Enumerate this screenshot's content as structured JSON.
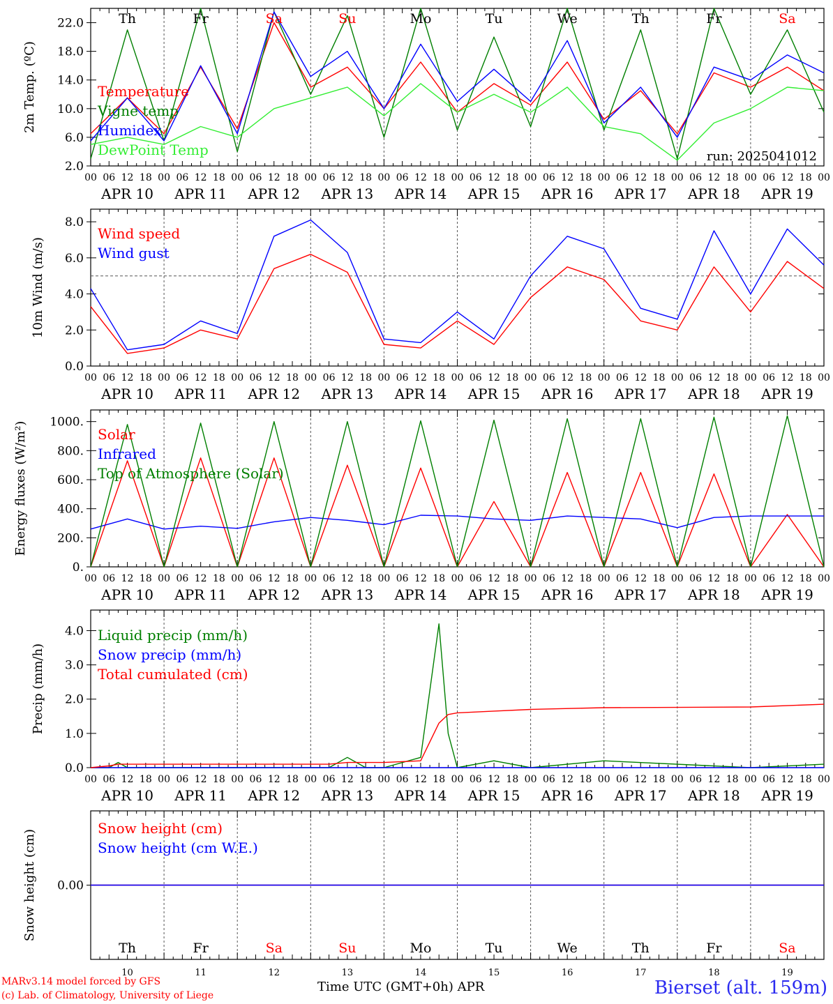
{
  "colors": {
    "red": "#ff0000",
    "green": "#007f00",
    "blue": "#0000ff",
    "lightgreen": "#33ee33",
    "grid": "#555555",
    "station": "#2a2af0"
  },
  "shared_axis": {
    "days": [
      {
        "wd": "Th",
        "weekend": false,
        "date": "APR 10",
        "dnum": "10"
      },
      {
        "wd": "Fr",
        "weekend": false,
        "date": "APR 11",
        "dnum": "11"
      },
      {
        "wd": "Sa",
        "weekend": true,
        "date": "APR 12",
        "dnum": "12"
      },
      {
        "wd": "Su",
        "weekend": true,
        "date": "APR 13",
        "dnum": "13"
      },
      {
        "wd": "Mo",
        "weekend": false,
        "date": "APR 14",
        "dnum": "14"
      },
      {
        "wd": "Tu",
        "weekend": false,
        "date": "APR 15",
        "dnum": "15"
      },
      {
        "wd": "We",
        "weekend": false,
        "date": "APR 16",
        "dnum": "16"
      },
      {
        "wd": "Th",
        "weekend": false,
        "date": "APR 17",
        "dnum": "17"
      },
      {
        "wd": "Fr",
        "weekend": false,
        "date": "APR 18",
        "dnum": "18"
      },
      {
        "wd": "Sa",
        "weekend": true,
        "date": "APR 19",
        "dnum": "19"
      }
    ],
    "hour_ticks": [
      "00",
      "06",
      "12",
      "18"
    ],
    "final_tick": "00"
  },
  "chart_data": [
    {
      "type": "line",
      "ylabel": "2m Temp. (ºC)",
      "ylim": [
        2,
        24
      ],
      "yticks": [
        "2.0",
        "6.0",
        "10.0",
        "14.0",
        "18.0",
        "22.0"
      ],
      "ytick_values": [
        2,
        6,
        10,
        14,
        18,
        22
      ],
      "annotation": "run: 2025041012",
      "x_hours": [
        0,
        12,
        24,
        36,
        48,
        60,
        72,
        84,
        96,
        108,
        120,
        132,
        144,
        156,
        168,
        180,
        192,
        204,
        216,
        228,
        240
      ],
      "series": [
        {
          "name": "Temperature",
          "color": "red",
          "values": [
            6.5,
            11.5,
            6.5,
            15.8,
            7.2,
            22.0,
            13.0,
            15.8,
            10.0,
            16.5,
            9.5,
            13.5,
            10.5,
            16.5,
            8.5,
            12.5,
            6.5,
            15.0,
            13.0,
            15.8,
            12.5
          ]
        },
        {
          "name": "Vigne temp",
          "color": "green",
          "values": [
            3.0,
            21.0,
            5.5,
            24.0,
            4.0,
            23.5,
            12.0,
            23.0,
            6.0,
            24.0,
            7.0,
            20.0,
            7.5,
            24.0,
            7.0,
            21.0,
            3.0,
            24.0,
            12.0,
            21.0,
            9.5
          ]
        },
        {
          "name": "Humidex",
          "color": "blue",
          "values": [
            5.5,
            11.5,
            5.5,
            16.0,
            6.5,
            23.5,
            14.5,
            18.0,
            10.0,
            19.0,
            11.0,
            15.5,
            11.0,
            19.5,
            8.0,
            13.0,
            6.0,
            15.8,
            14.0,
            17.5,
            15.0
          ]
        },
        {
          "name": "DewPoint Temp",
          "color": "lightgreen",
          "values": [
            5.0,
            6.0,
            5.0,
            7.5,
            6.0,
            10.0,
            11.5,
            13.0,
            9.0,
            13.5,
            9.5,
            12.0,
            9.5,
            13.0,
            7.5,
            6.5,
            2.8,
            8.0,
            10.0,
            13.0,
            12.5
          ]
        }
      ]
    },
    {
      "type": "line",
      "ylabel": "10m Wind (m/s)",
      "ylim": [
        0,
        8.7
      ],
      "yticks": [
        "0.0",
        "2.0",
        "4.0",
        "6.0",
        "8.0"
      ],
      "ytick_values": [
        0,
        2,
        4,
        6,
        8
      ],
      "reference_line": 5.0,
      "x_hours": [
        0,
        12,
        24,
        36,
        48,
        60,
        72,
        84,
        96,
        108,
        120,
        132,
        144,
        156,
        168,
        180,
        192,
        204,
        216,
        228,
        240
      ],
      "series": [
        {
          "name": "Wind speed",
          "color": "red",
          "values": [
            3.3,
            0.7,
            1.0,
            2.0,
            1.5,
            5.4,
            6.2,
            5.2,
            1.2,
            1.0,
            2.5,
            1.2,
            3.8,
            5.5,
            4.8,
            2.5,
            2.0,
            5.5,
            3.0,
            5.8,
            4.3
          ]
        },
        {
          "name": "Wind gust",
          "color": "blue",
          "values": [
            4.3,
            0.9,
            1.2,
            2.5,
            1.8,
            7.2,
            8.1,
            6.3,
            1.5,
            1.3,
            3.0,
            1.5,
            5.0,
            7.2,
            6.5,
            3.2,
            2.6,
            7.5,
            4.0,
            7.6,
            5.6
          ]
        }
      ]
    },
    {
      "type": "line",
      "ylabel": "Energy fluxes (W/m²)",
      "ylim": [
        0,
        1080
      ],
      "yticks": [
        "0.",
        "200.",
        "400.",
        "600.",
        "800.",
        "1000."
      ],
      "ytick_values": [
        0,
        200,
        400,
        600,
        800,
        1000
      ],
      "x_hours": [
        0,
        12,
        24,
        36,
        48,
        60,
        72,
        84,
        96,
        108,
        120,
        132,
        144,
        156,
        168,
        180,
        192,
        204,
        216,
        228,
        240
      ],
      "series": [
        {
          "name": "Solar",
          "color": "red",
          "values": [
            0,
            730,
            0,
            750,
            0,
            750,
            0,
            700,
            0,
            680,
            0,
            450,
            0,
            650,
            0,
            650,
            0,
            640,
            0,
            360,
            0
          ]
        },
        {
          "name": "Infrared",
          "color": "blue",
          "values": [
            260,
            330,
            260,
            280,
            265,
            310,
            340,
            320,
            290,
            355,
            350,
            330,
            320,
            350,
            340,
            330,
            270,
            340,
            350,
            350,
            350
          ]
        },
        {
          "name": "Top of Atmosphere (Solar)",
          "color": "green",
          "values": [
            0,
            980,
            0,
            990,
            0,
            1000,
            0,
            1000,
            0,
            1005,
            0,
            1010,
            0,
            1020,
            0,
            1020,
            0,
            1030,
            0,
            1040,
            0
          ]
        }
      ]
    },
    {
      "type": "line",
      "ylabel": "Precip (mm/h)",
      "ylim": [
        0,
        4.6
      ],
      "yticks": [
        "0.0",
        "1.0",
        "2.0",
        "3.0",
        "4.0"
      ],
      "ytick_values": [
        0,
        1,
        2,
        3,
        4
      ],
      "x_hours": [
        0,
        6,
        9,
        12,
        36,
        78,
        84,
        90,
        96,
        108,
        114,
        117,
        120,
        132,
        144,
        168,
        216,
        240
      ],
      "series": [
        {
          "name": "Liquid precip (mm/h)",
          "color": "green",
          "values": [
            0,
            0,
            0.15,
            0,
            0,
            0,
            0.3,
            0,
            0,
            0.3,
            4.2,
            1.0,
            0,
            0.2,
            0,
            0.2,
            0,
            0.1
          ]
        },
        {
          "name": "Snow precip (mm/h)",
          "color": "blue",
          "values": [
            0,
            0,
            0,
            0,
            0,
            0,
            0,
            0,
            0,
            0,
            0,
            0,
            0,
            0,
            0,
            0,
            0,
            0
          ]
        },
        {
          "name": "Total cumulated (cm)",
          "color": "red",
          "values": [
            0,
            0.05,
            0.1,
            0.1,
            0.1,
            0.1,
            0.15,
            0.15,
            0.15,
            0.2,
            1.3,
            1.55,
            1.6,
            1.65,
            1.7,
            1.75,
            1.77,
            1.85
          ]
        }
      ]
    },
    {
      "type": "line",
      "ylabel": "Snow height (cm)",
      "ylim": [
        -1,
        1
      ],
      "yticks": [
        "0.00"
      ],
      "ytick_values": [
        0
      ],
      "xlabel": "Time UTC (GMT+0h) APR",
      "x_hours": [
        0,
        240
      ],
      "series": [
        {
          "name": "Snow height (cm)",
          "color": "red",
          "values": [
            0,
            0
          ]
        },
        {
          "name": "Snow height (cm W.E.)",
          "color": "blue",
          "values": [
            0,
            0
          ]
        }
      ]
    }
  ],
  "footer": {
    "credit_line1": "MARv3.14 model forced by GFS",
    "credit_line2": "(c) Lab. of Climatology, University of Liege",
    "axis_title": "Time UTC (GMT+0h) APR",
    "station": "Bierset (alt. 159m)"
  }
}
